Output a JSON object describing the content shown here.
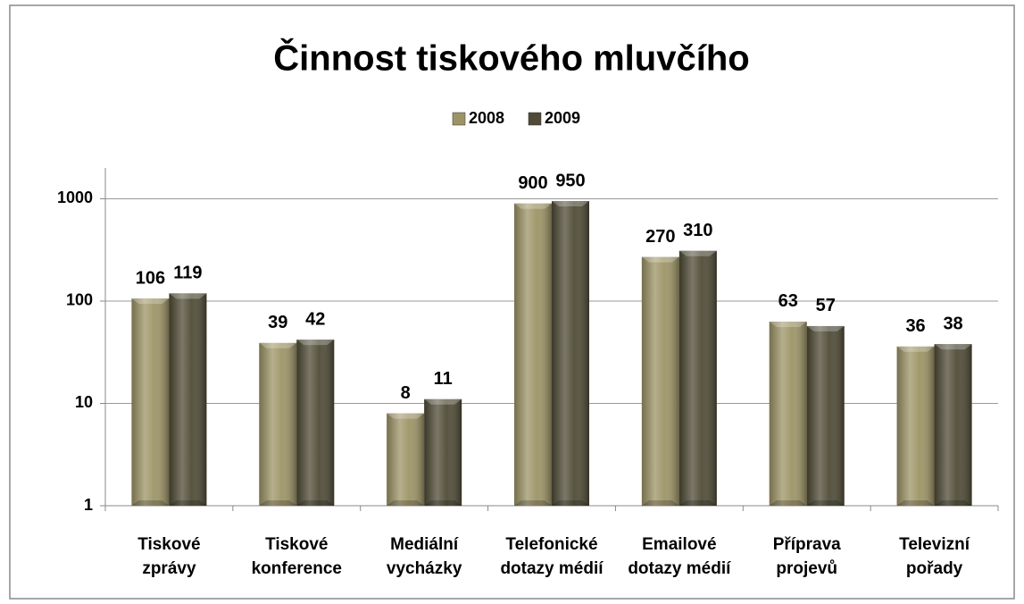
{
  "chart_data": {
    "type": "bar",
    "title": "Činnost tiskového mluvčího",
    "categories": [
      [
        "Tiskové",
        "zprávy"
      ],
      [
        "Tiskové",
        "konference"
      ],
      [
        "Mediální",
        "vycházky"
      ],
      [
        "Telefonické",
        "dotazy médií"
      ],
      [
        "Emailové",
        "dotazy médií"
      ],
      [
        "Příprava",
        "projevů"
      ],
      [
        "Televizní",
        "pořady"
      ]
    ],
    "series": [
      {
        "name": "2008",
        "color": "#9d9466",
        "values": [
          106,
          39,
          8,
          900,
          270,
          63,
          36
        ]
      },
      {
        "name": "2009",
        "color": "#4f4b36",
        "values": [
          119,
          42,
          11,
          950,
          310,
          57,
          38
        ]
      }
    ],
    "ylim": [
      1,
      2000
    ],
    "yticks": [
      1,
      10,
      100,
      1000
    ],
    "log_scale": true,
    "grid": true,
    "legend": "top"
  }
}
